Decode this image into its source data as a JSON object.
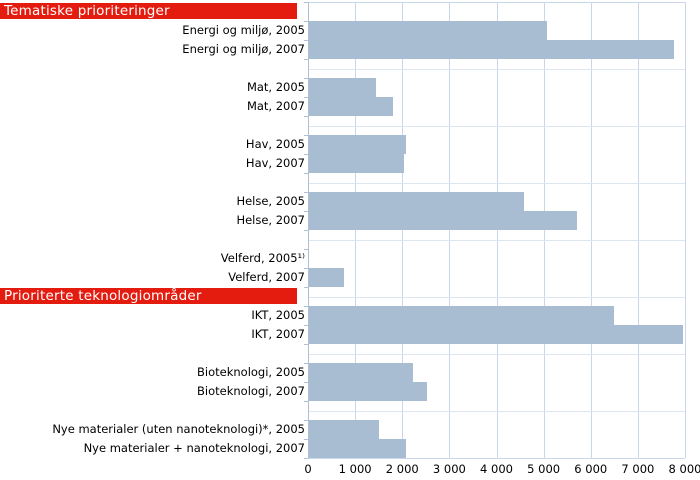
{
  "colors": {
    "header_bg": "#e41c10",
    "header_text": "#ffffff",
    "bar_fill": "#a9bdd2",
    "grid": "#c9d7e8",
    "grid_faint": "#dde7f1",
    "axis": "#b0c0d4",
    "text": "#000000"
  },
  "chart_data": {
    "type": "bar",
    "orientation": "horizontal",
    "xlabel": "",
    "ylabel": "",
    "xlim": [
      0,
      8000
    ],
    "grid": "vertical",
    "legend": "none",
    "x_tick_labels": [
      "0",
      "1 000",
      "2 000",
      "3 000",
      "4 000",
      "5 000",
      "6 000",
      "7 000",
      "8 000"
    ],
    "rows": [
      {
        "kind": "section-header",
        "label": "Tematiske prioriteringer"
      },
      {
        "kind": "bar",
        "label": "Energi og miljø, 2005",
        "value": 5050
      },
      {
        "kind": "bar",
        "label": "Energi og miljø, 2007",
        "value": 7740
      },
      {
        "kind": "spacer"
      },
      {
        "kind": "bar",
        "label": "Mat, 2005",
        "value": 1420
      },
      {
        "kind": "bar",
        "label": "Mat, 2007",
        "value": 1780
      },
      {
        "kind": "spacer"
      },
      {
        "kind": "bar",
        "label": "Hav, 2005",
        "value": 2060
      },
      {
        "kind": "bar",
        "label": "Hav, 2007",
        "value": 2020
      },
      {
        "kind": "spacer"
      },
      {
        "kind": "bar",
        "label": "Helse, 2005",
        "value": 4560
      },
      {
        "kind": "bar",
        "label": "Helse, 2007",
        "value": 5690
      },
      {
        "kind": "spacer"
      },
      {
        "kind": "bar",
        "label": "Velferd, 2005¹⁾",
        "value": null
      },
      {
        "kind": "bar",
        "label": "Velferd, 2007",
        "value": 750
      },
      {
        "kind": "section-header",
        "label": "Prioriterte teknologiområder"
      },
      {
        "kind": "bar",
        "label": "IKT, 2005",
        "value": 6470
      },
      {
        "kind": "bar",
        "label": "IKT, 2007",
        "value": 7940
      },
      {
        "kind": "spacer"
      },
      {
        "kind": "bar",
        "label": "Bioteknologi, 2005",
        "value": 2210
      },
      {
        "kind": "bar",
        "label": "Bioteknologi, 2007",
        "value": 2500
      },
      {
        "kind": "spacer"
      },
      {
        "kind": "bar",
        "label": "Nye materialer (uten nanoteknologi)*, 2005",
        "value": 1490
      },
      {
        "kind": "bar",
        "label": "Nye materialer + nanoteknologi, 2007",
        "value": 2060
      }
    ]
  }
}
